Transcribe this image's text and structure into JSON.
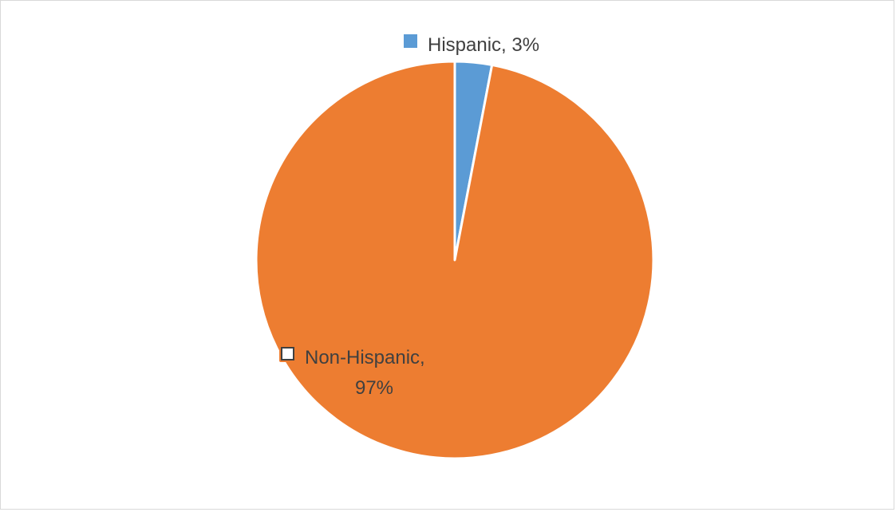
{
  "chart_data": {
    "type": "pie",
    "title": "",
    "categories": [
      "Hispanic",
      "Non-Hispanic"
    ],
    "values": [
      3,
      97
    ],
    "unit": "%",
    "colors": [
      "#5b9bd5",
      "#ed7d31"
    ],
    "data_labels": [
      {
        "category": "Hispanic",
        "lines": [
          "Hispanic, 3%"
        ]
      },
      {
        "category": "Non-Hispanic",
        "lines": [
          "Non-Hispanic,",
          "97%"
        ]
      }
    ],
    "legend": "none",
    "start_angle_deg": 0,
    "direction": "clockwise"
  }
}
